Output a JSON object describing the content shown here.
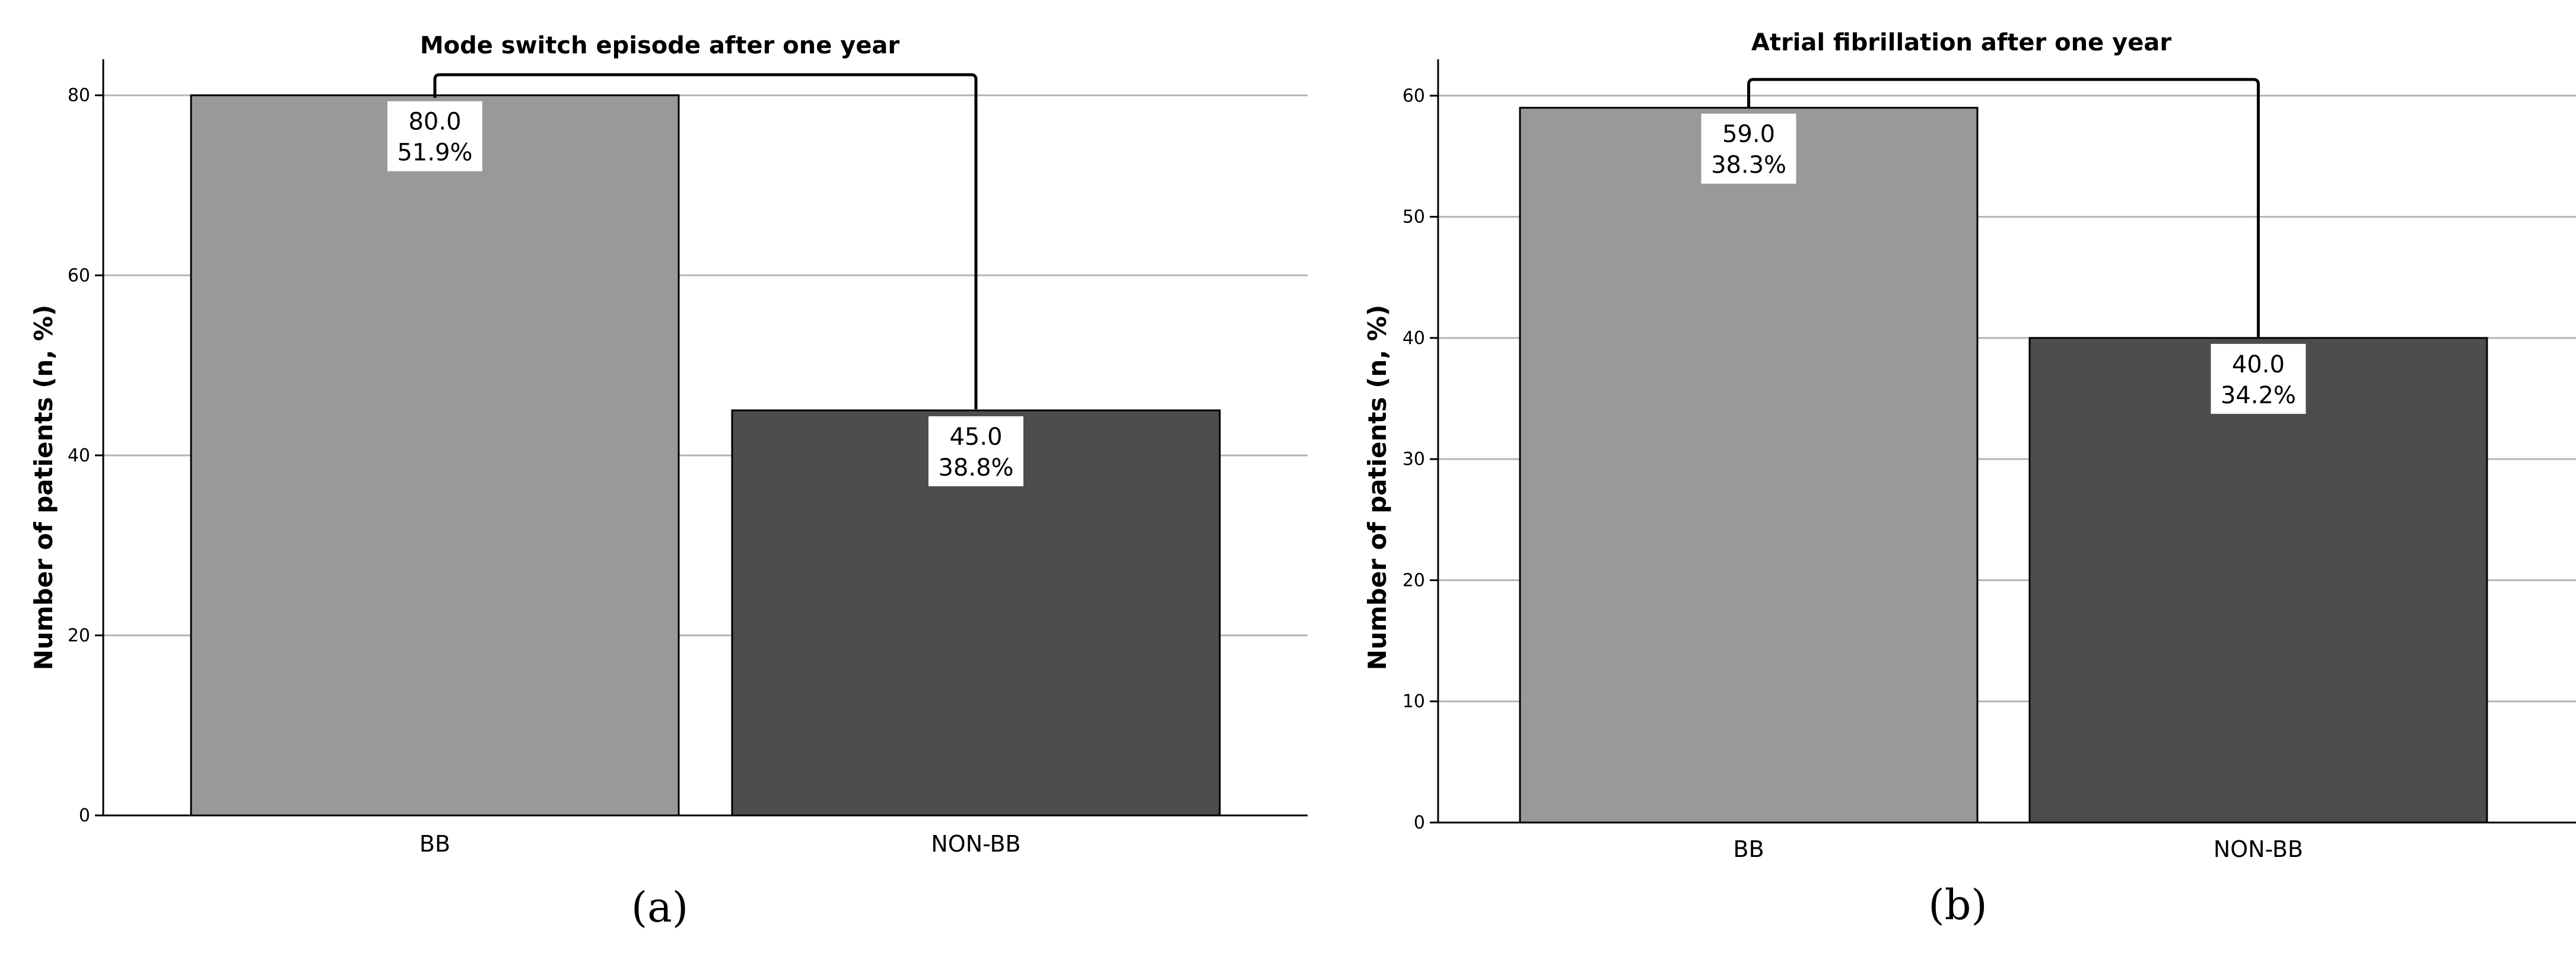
{
  "panels": [
    {
      "letter": "a",
      "letter_text": "(a)"
    },
    {
      "letter": "b",
      "letter_text": "(b)"
    }
  ],
  "colors": {
    "bb": "#999999",
    "non_bb": "#4d4d4d",
    "grid": "#b5b5b5",
    "axis": "#000000",
    "label_box": "#ffffff"
  },
  "chart_data": [
    {
      "type": "bar",
      "title": "Mode switch episode after one year",
      "xlabel": "",
      "ylabel": "Number of patients (n, %)",
      "categories": [
        "BB",
        "NON-BB"
      ],
      "values": [
        80,
        45
      ],
      "value_labels": [
        "80.0",
        "45.0"
      ],
      "percent_labels": [
        "51.9%",
        "38.8%"
      ],
      "ylim": [
        0,
        84
      ],
      "yticks": [
        0,
        20,
        40,
        60,
        80
      ],
      "grid": true,
      "bracket": true,
      "legend": "none"
    },
    {
      "type": "bar",
      "title": "Atrial fibrillation after one year",
      "xlabel": "",
      "ylabel": "Number of patients (n, %)",
      "categories": [
        "BB",
        "NON-BB"
      ],
      "values": [
        59,
        40
      ],
      "value_labels": [
        "59.0",
        "40.0"
      ],
      "percent_labels": [
        "38.3%",
        "34.2%"
      ],
      "ylim": [
        0,
        63
      ],
      "yticks": [
        0,
        10,
        20,
        30,
        40,
        50,
        60
      ],
      "grid": true,
      "bracket": true,
      "legend": "none"
    }
  ]
}
